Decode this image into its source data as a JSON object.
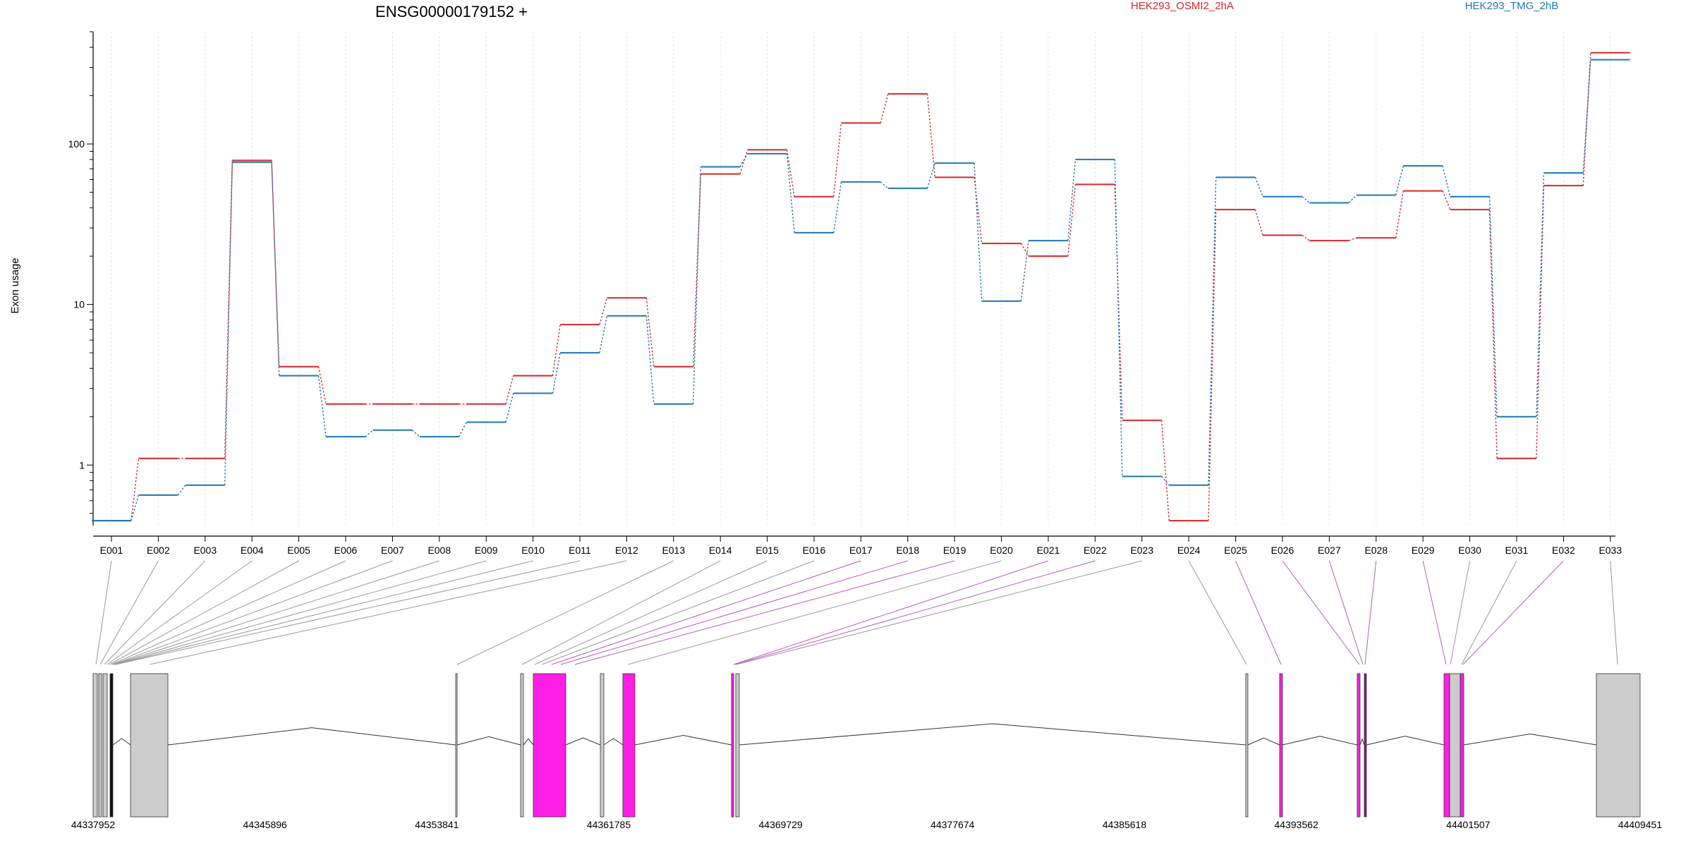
{
  "chart_data": {
    "type": "line",
    "title": "ENSG00000179152 +",
    "ylabel": "Exon usage",
    "y_scale": "log",
    "ylim": [
      0.42,
      500
    ],
    "y_ticks": [
      1,
      10,
      100
    ],
    "y_tick_labels": [
      "1",
      "10",
      "100"
    ],
    "grid": "vertical dashed, light",
    "legend_placement": "top",
    "categories": [
      "E001",
      "E002",
      "E003",
      "E004",
      "E005",
      "E006",
      "E007",
      "E008",
      "E009",
      "E010",
      "E011",
      "E012",
      "E013",
      "E014",
      "E015",
      "E016",
      "E017",
      "E018",
      "E019",
      "E020",
      "E021",
      "E022",
      "E023",
      "E024",
      "E025",
      "E026",
      "E027",
      "E028",
      "E029",
      "E030",
      "E031",
      "E032",
      "E033"
    ],
    "series": [
      {
        "name": "HEK293_OSMI2_2hA",
        "color": "#d62728",
        "values": [
          0.45,
          1.1,
          1.1,
          79,
          4.1,
          2.4,
          2.4,
          2.4,
          2.4,
          3.6,
          7.5,
          11,
          4.1,
          65,
          92,
          47,
          135,
          205,
          62,
          24,
          20,
          56,
          1.9,
          0.45,
          39,
          27,
          25,
          26,
          51,
          39,
          1.1,
          55,
          370
        ]
      },
      {
        "name": "HEK293_TMG_2hB",
        "color": "#1f77b4",
        "values": [
          0.45,
          0.65,
          0.75,
          77,
          3.6,
          1.5,
          1.65,
          1.5,
          1.85,
          2.8,
          5.0,
          8.5,
          2.4,
          72,
          87,
          28,
          58,
          53,
          76,
          10.5,
          25,
          80,
          0.85,
          0.75,
          62,
          47,
          43,
          48,
          73,
          47,
          2.0,
          66,
          335
        ]
      }
    ],
    "genomic_axis": {
      "tick_labels": [
        "44337952",
        "44345896",
        "44353841",
        "44361785",
        "44369729",
        "44377674",
        "44385618",
        "44393562",
        "44401507",
        "44409451"
      ]
    }
  }
}
